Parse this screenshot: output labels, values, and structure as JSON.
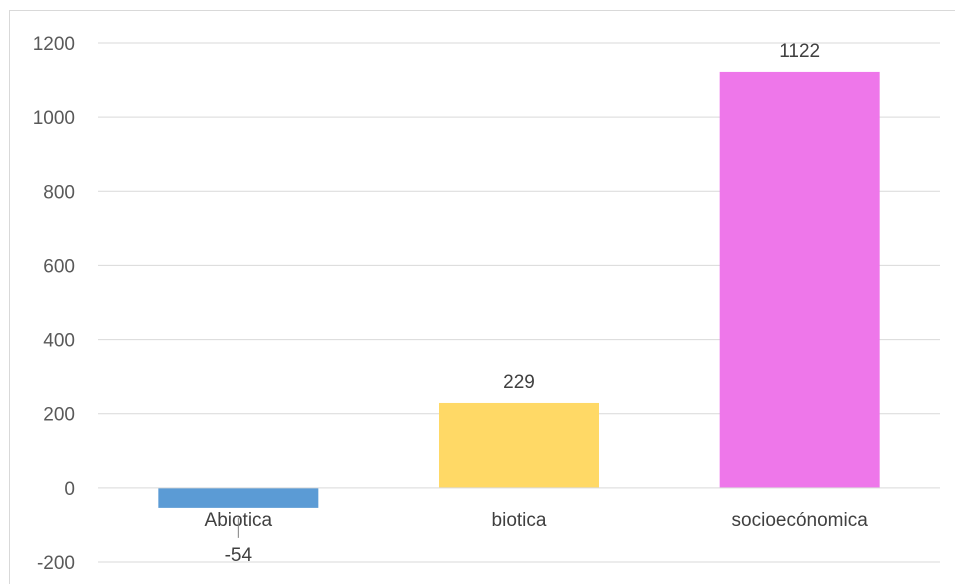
{
  "chart_data": {
    "type": "bar",
    "title": "",
    "xlabel": "",
    "ylabel": "",
    "categories": [
      "Abiotica",
      "biotica",
      "socioecónomica"
    ],
    "values": [
      -54,
      229,
      1122
    ],
    "data_labels": [
      "-54",
      "229",
      "1122"
    ],
    "colors": [
      "#5b9bd5",
      "#ffd966",
      "#ee77ea"
    ],
    "ylim": [
      -200,
      1200
    ],
    "yticks": [
      1200,
      1000,
      800,
      600,
      400,
      200,
      0,
      -200
    ],
    "grid": true,
    "legend": "none"
  }
}
